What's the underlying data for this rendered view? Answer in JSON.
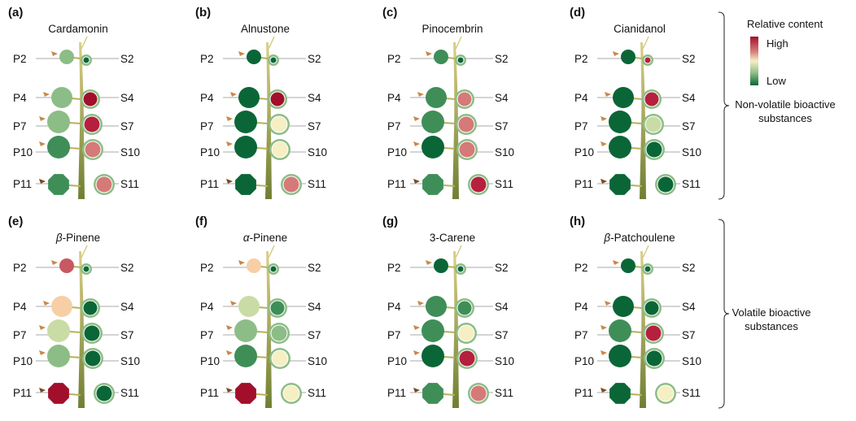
{
  "palette": {
    "dark": "#0b6637",
    "mid": "#3f8e58",
    "light": "#8dbd86",
    "pale": "#c9dca5",
    "cream": "#f6efc4",
    "peach": "#f7cfa6",
    "pinkred": "#c85862",
    "pink": "#d57a78",
    "red": "#b5203e",
    "darkred": "#a20f2a"
  },
  "row_labels_p": [
    "P2",
    "P4",
    "P7",
    "P10",
    "P11"
  ],
  "row_labels_s": [
    "S2",
    "S4",
    "S7",
    "S10",
    "S11"
  ],
  "panels": [
    {
      "tag": "(a)",
      "title": "Cardamonin",
      "p": [
        "light",
        "light",
        "light",
        "mid",
        "mid"
      ],
      "s": [
        "dark",
        "darkred",
        "red",
        "pink",
        "pink"
      ]
    },
    {
      "tag": "(b)",
      "title": "Alnustone",
      "p": [
        "dark",
        "dark",
        "dark",
        "dark",
        "dark"
      ],
      "s": [
        "dark",
        "darkred",
        "cream",
        "cream",
        "pink"
      ]
    },
    {
      "tag": "(c)",
      "title": "Pinocembrin",
      "p": [
        "mid",
        "mid",
        "mid",
        "dark",
        "mid"
      ],
      "s": [
        "dark",
        "pink",
        "pink",
        "pink",
        "red"
      ]
    },
    {
      "tag": "(d)",
      "title": "Cianidanol",
      "p": [
        "dark",
        "dark",
        "dark",
        "dark",
        "dark"
      ],
      "s": [
        "red",
        "red",
        "pale",
        "dark",
        "dark"
      ]
    },
    {
      "tag": "(e)",
      "title_prefix": "β",
      "title": "-Pinene",
      "p": [
        "pinkred",
        "peach",
        "pale",
        "light",
        "darkred"
      ],
      "s": [
        "dark",
        "dark",
        "dark",
        "dark",
        "dark"
      ]
    },
    {
      "tag": "(f)",
      "title_prefix": "α",
      "title": "-Pinene",
      "p": [
        "peach",
        "pale",
        "light",
        "mid",
        "darkred"
      ],
      "s": [
        "dark",
        "mid",
        "light",
        "cream",
        "cream"
      ]
    },
    {
      "tag": "(g)",
      "title": "3-Carene",
      "p": [
        "dark",
        "mid",
        "mid",
        "dark",
        "mid"
      ],
      "s": [
        "dark",
        "mid",
        "cream",
        "red",
        "pink"
      ]
    },
    {
      "tag": "(h)",
      "title_prefix": "β",
      "title": "-Patchoulene",
      "p": [
        "dark",
        "dark",
        "mid",
        "dark",
        "dark"
      ],
      "s": [
        "dark",
        "dark",
        "red",
        "dark",
        "cream"
      ]
    }
  ],
  "legend": {
    "title": "Relative content",
    "high": "High",
    "low": "Low"
  },
  "groups": {
    "nonvolatile_line1": "Non-volatile bioactive",
    "nonvolatile_line2": "substances",
    "volatile_line1": "Volatile bioactive",
    "volatile_line2": "substances"
  }
}
